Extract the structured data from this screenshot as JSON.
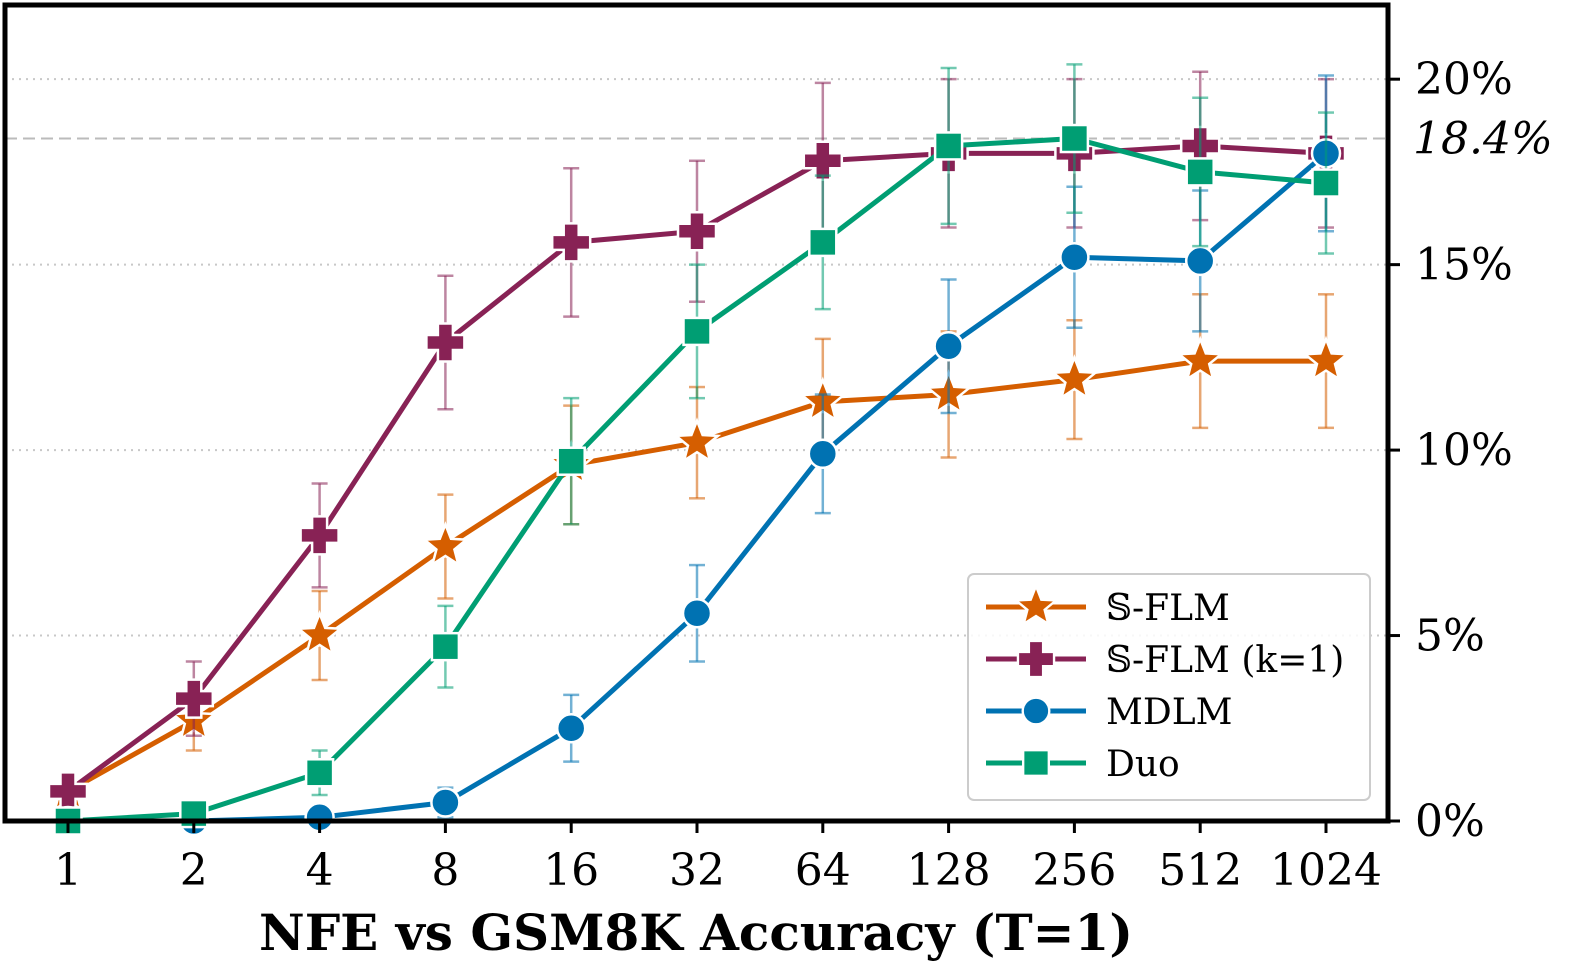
{
  "chart_data": {
    "type": "line",
    "title": "",
    "xlabel": "NFE vs GSM8K Accuracy (T=1)",
    "ylabel": "",
    "x": [
      1,
      2,
      4,
      8,
      16,
      32,
      64,
      128,
      256,
      512,
      1024
    ],
    "x_tick_labels": [
      "1",
      "2",
      "4",
      "8",
      "16",
      "32",
      "64",
      "128",
      "256",
      "512",
      "1024"
    ],
    "x_scale": "log2",
    "y_axis_side": "right",
    "ylim": [
      0,
      22
    ],
    "y_ticks": [
      0,
      5,
      10,
      15,
      20
    ],
    "y_tick_labels": [
      "0%",
      "5%",
      "10%",
      "15%",
      "20%"
    ],
    "grid": "horizontal-dotted",
    "reference_line": {
      "value": 18.4,
      "label": "18.4%"
    },
    "legend_position": "lower-right",
    "series": [
      {
        "name": "𝕊-FLM",
        "color": "#d55e00",
        "marker": "star",
        "values": [
          0.8,
          2.7,
          5.0,
          7.4,
          9.6,
          10.2,
          11.3,
          11.5,
          11.9,
          12.4,
          12.4
        ],
        "errors": [
          0.4,
          0.8,
          1.2,
          1.4,
          1.6,
          1.5,
          1.7,
          1.7,
          1.6,
          1.8,
          1.8
        ]
      },
      {
        "name": "𝕊-FLM (k=1)",
        "color": "#882255",
        "marker": "plus",
        "values": [
          0.8,
          3.3,
          7.7,
          12.9,
          15.6,
          15.9,
          17.8,
          18.0,
          18.0,
          18.2,
          18.0
        ],
        "errors": [
          0.4,
          1.0,
          1.4,
          1.8,
          2.0,
          1.9,
          2.1,
          2.0,
          2.0,
          2.0,
          2.0
        ]
      },
      {
        "name": "MDLM",
        "color": "#0072b2",
        "marker": "circle",
        "values": [
          0.0,
          0.0,
          0.1,
          0.5,
          2.5,
          5.6,
          9.9,
          12.8,
          15.2,
          15.1,
          18.0
        ],
        "errors": [
          0.1,
          0.2,
          0.2,
          0.4,
          0.9,
          1.3,
          1.6,
          1.8,
          1.9,
          1.9,
          2.1
        ]
      },
      {
        "name": "Duo",
        "color": "#009e73",
        "marker": "square",
        "values": [
          0.0,
          0.2,
          1.3,
          4.7,
          9.7,
          13.2,
          15.6,
          18.2,
          18.4,
          17.5,
          17.2
        ],
        "errors": [
          0.1,
          0.2,
          0.6,
          1.1,
          1.7,
          1.8,
          1.8,
          2.1,
          2.0,
          2.0,
          1.9
        ]
      }
    ]
  }
}
